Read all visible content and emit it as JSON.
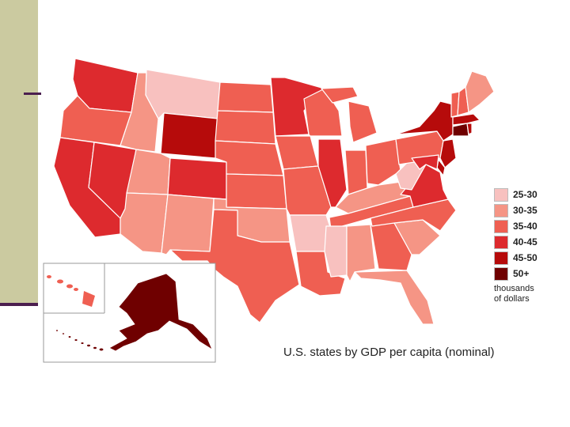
{
  "map": {
    "caption_main": "U.S. states by GDP per capita",
    "caption_paren": " (nominal)",
    "legend": {
      "items": [
        {
          "label": "25-30",
          "color": "#f8c1bf"
        },
        {
          "label": "30-35",
          "color": "#f59585"
        },
        {
          "label": "35-40",
          "color": "#ef5f52"
        },
        {
          "label": "40-45",
          "color": "#dd2a2e"
        },
        {
          "label": "45-50",
          "color": "#b60b0b"
        },
        {
          "label": "50+",
          "color": "#6f0000"
        }
      ],
      "unit_line1": "thousands",
      "unit_line2": "of dollars"
    },
    "colors": {
      "slide_band": "#cbcaa0",
      "slide_accent": "#4b1f4f",
      "border": "#ffffff"
    }
  }
}
